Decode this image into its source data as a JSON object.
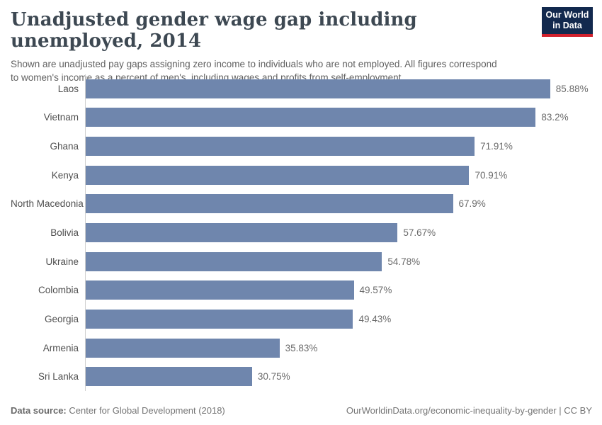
{
  "header": {
    "title": "Unadjusted gender wage gap including unemployed, 2014",
    "subtitle": "Shown are unadjusted pay gaps assigning zero income to individuals who are not employed. All figures correspond to women's income as a percent of men's, including wages and profits from self-employment.",
    "logo": {
      "line1": "Our World",
      "line2": "in Data",
      "bg_color": "#12294e",
      "accent_color": "#d1202c"
    }
  },
  "chart_data": {
    "type": "bar",
    "orientation": "horizontal",
    "title": "Unadjusted gender wage gap including unemployed, 2014",
    "subtitle": "Shown are unadjusted pay gaps assigning zero income to individuals who are not employed. All figures correspond to women's income as a percent of men's, including wages and profits from self-employment.",
    "categories": [
      "Laos",
      "Vietnam",
      "Ghana",
      "Kenya",
      "North Macedonia",
      "Bolivia",
      "Ukraine",
      "Colombia",
      "Georgia",
      "Armenia",
      "Sri Lanka"
    ],
    "values": [
      85.88,
      83.2,
      71.91,
      70.91,
      67.9,
      57.67,
      54.78,
      49.57,
      49.43,
      35.83,
      30.75
    ],
    "value_labels": [
      "85.88%",
      "83.2%",
      "71.91%",
      "70.91%",
      "67.9%",
      "57.67%",
      "54.78%",
      "49.57%",
      "49.43%",
      "35.83%",
      "30.75%"
    ],
    "unit": "%",
    "xlabel": "",
    "ylabel": "",
    "xlim": [
      0,
      93.5
    ],
    "bar_color": "#6f86ad",
    "grid": false,
    "legend": false
  },
  "footer": {
    "source_label": "Data source:",
    "source_text": "Center for Global Development (2018)",
    "credit": "OurWorldinData.org/economic-inequality-by-gender | CC BY"
  }
}
